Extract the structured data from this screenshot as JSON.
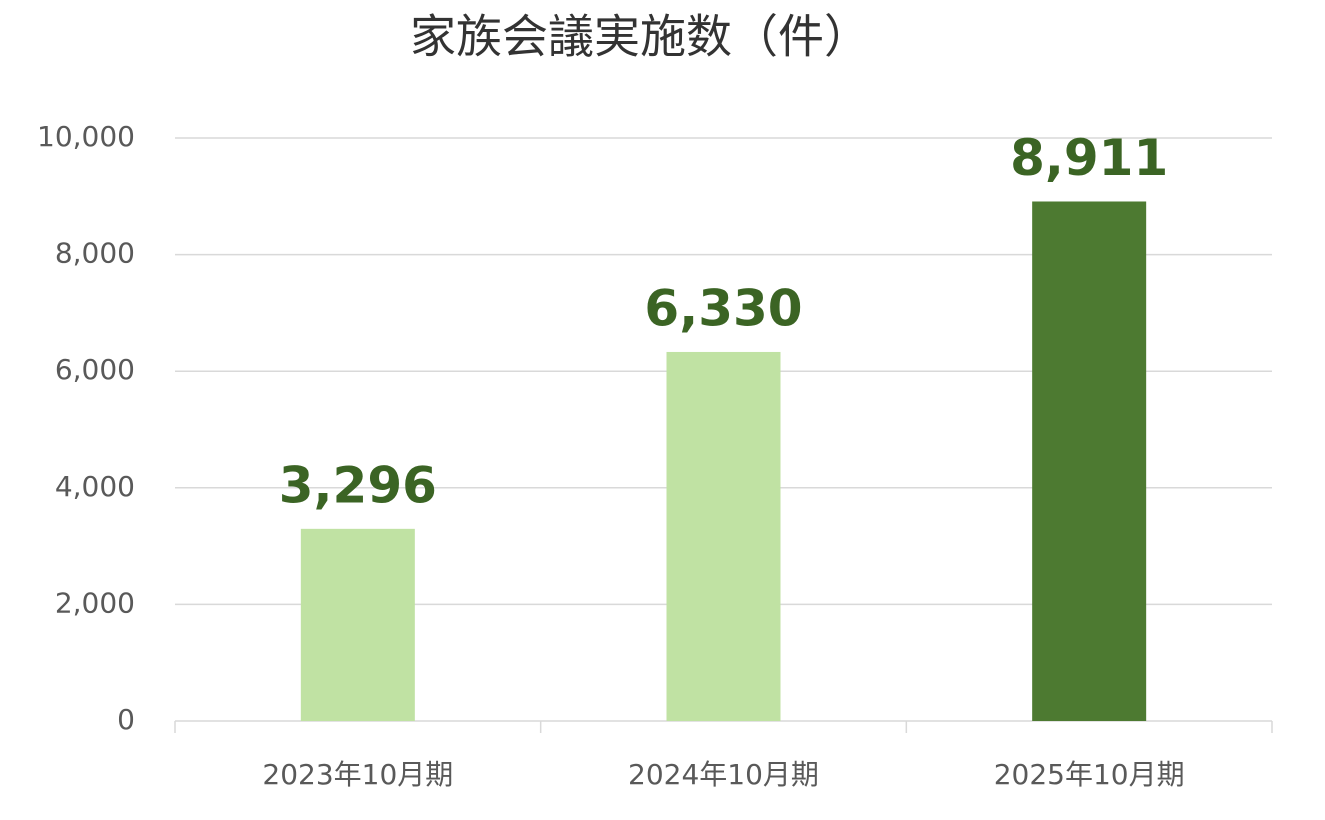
{
  "chart_data": {
    "type": "bar",
    "title": "家族会議実施数（件）",
    "categories": [
      "2023年10月期",
      "2024年10月期",
      "2025年10月期"
    ],
    "values": [
      3296,
      6330,
      8911
    ],
    "value_labels": [
      "3,296",
      "6,330",
      "8,911"
    ],
    "colors": [
      "#c0e2a3",
      "#c0e2a3",
      "#4d7a31"
    ],
    "ylim": [
      0,
      10000
    ],
    "yticks": [
      0,
      {
        "value": 2000,
        "label": "2,000"
      },
      {
        "value": 4000,
        "label": "4,000"
      },
      {
        "value": 6000,
        "label": "6,000"
      },
      {
        "value": 8000,
        "label": "8,000"
      },
      {
        "value": 10000,
        "label": "10,000"
      }
    ],
    "grid": true
  }
}
